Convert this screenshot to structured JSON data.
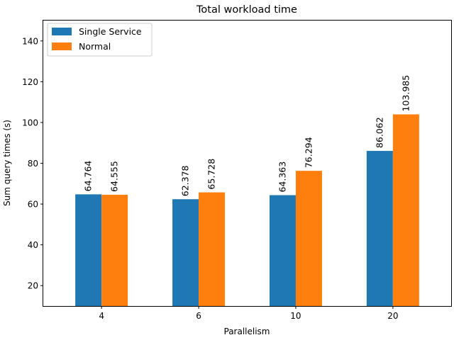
{
  "chart_data": {
    "type": "bar",
    "title": "Total workload time",
    "xlabel": "Parallelism",
    "ylabel": "Sum query times (s)",
    "categories": [
      "4",
      "6",
      "10",
      "20"
    ],
    "series": [
      {
        "name": "Single Service",
        "color": "#1f77b4",
        "values": [
          64.764,
          62.378,
          64.363,
          86.062
        ],
        "labels": [
          "64.764",
          "62.378",
          "64.363",
          "86.062"
        ]
      },
      {
        "name": "Normal",
        "color": "#ff7f0e",
        "values": [
          64.555,
          65.728,
          76.294,
          103.985
        ],
        "labels": [
          "64.555",
          "65.728",
          "76.294",
          "103.985"
        ]
      }
    ],
    "ylim": [
      10,
      150
    ],
    "yticks": [
      20,
      40,
      60,
      80,
      100,
      120,
      140
    ],
    "ytick_labels": [
      "20",
      "40",
      "60",
      "80",
      "100",
      "120",
      "140"
    ],
    "grid": false,
    "legend": "top-left"
  }
}
